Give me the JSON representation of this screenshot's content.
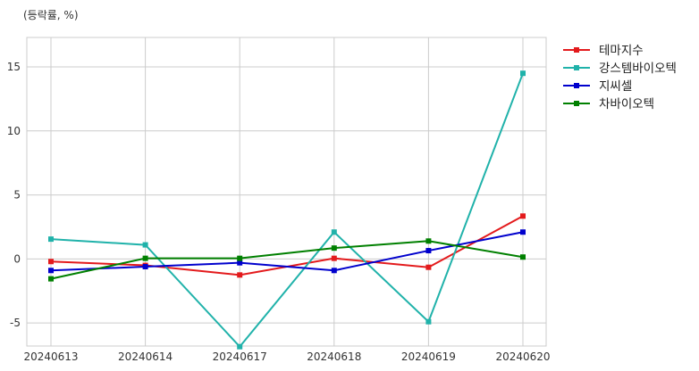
{
  "chart_data": {
    "type": "line",
    "unit_label": "(등락률, %)",
    "categories": [
      "20240613",
      "20240614",
      "20240617",
      "20240618",
      "20240619",
      "20240620"
    ],
    "ylim": [
      -6.8,
      17.3
    ],
    "yticks": [
      -5,
      0,
      5,
      10,
      15
    ],
    "grid": true,
    "legend_position": "outside-top-right",
    "series": [
      {
        "name": "테마지수",
        "color": "#e31a1c",
        "values": [
          -0.2,
          -0.5,
          -1.25,
          0.05,
          -0.65,
          3.35
        ]
      },
      {
        "name": "강스템바이오텍",
        "color": "#20b2aa",
        "values": [
          1.55,
          1.1,
          -6.85,
          2.1,
          -4.9,
          14.5
        ]
      },
      {
        "name": "지씨셀",
        "color": "#0000cd",
        "values": [
          -0.9,
          -0.6,
          -0.3,
          -0.9,
          0.65,
          2.1
        ]
      },
      {
        "name": "차바이오텍",
        "color": "#008000",
        "values": [
          -1.55,
          0.05,
          0.05,
          0.85,
          1.4,
          0.15
        ]
      }
    ]
  }
}
